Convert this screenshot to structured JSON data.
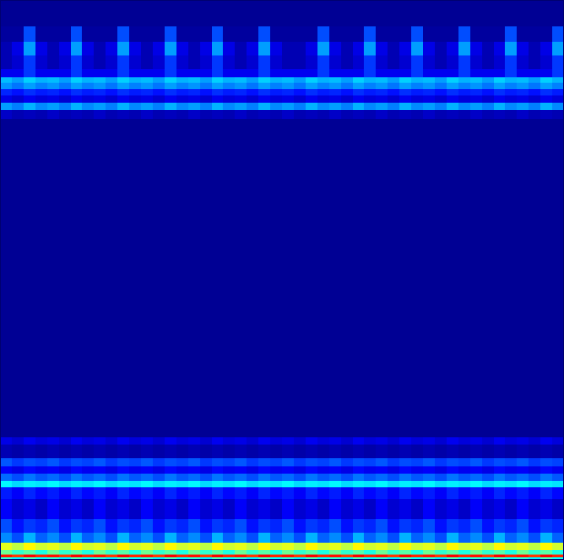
{
  "chart_data": {
    "type": "heatmap",
    "xlim": [
      0,
      48
    ],
    "ylim": [
      0,
      616
    ],
    "y_bins": [
      0,
      4,
      7,
      12,
      20,
      31,
      46,
      68,
      81,
      88,
      96,
      104,
      113,
      128,
      136,
      486,
      496,
      504,
      512,
      519,
      526,
      532,
      541,
      556,
      571,
      588,
      616
    ],
    "color_range": [
      0,
      1
    ],
    "tick_labels": false,
    "grid": false,
    "cells": [
      [
        0.42,
        0.36,
        0.45,
        0.38,
        0.42,
        0.36,
        0.45,
        0.38,
        0.42,
        0.36,
        0.45,
        0.38,
        0.42,
        0.36,
        0.45,
        0.38,
        0.42,
        0.36,
        0.45,
        0.38,
        0.42,
        0.36,
        0.45,
        0.38,
        0.42,
        0.36,
        0.45,
        0.38,
        0.42,
        0.36,
        0.45,
        0.38,
        0.42,
        0.36,
        0.45,
        0.38,
        0.42,
        0.36,
        0.45,
        0.38,
        0.42,
        0.36,
        0.45,
        0.38,
        0.42,
        0.36,
        0.45,
        0.38
      ],
      [
        0.86,
        0.82,
        0.88,
        0.84,
        0.86,
        0.82,
        0.88,
        0.84,
        0.86,
        0.82,
        0.88,
        0.84,
        0.86,
        0.82,
        0.88,
        0.84,
        0.86,
        0.82,
        0.88,
        0.84,
        0.86,
        0.82,
        0.88,
        0.84,
        0.86,
        0.82,
        0.88,
        0.84,
        0.86,
        0.82,
        0.88,
        0.84,
        0.86,
        0.82,
        0.88,
        0.84,
        0.86,
        0.82,
        0.88,
        0.84,
        0.86,
        0.82,
        0.88,
        0.84,
        0.86,
        0.82,
        0.88,
        0.84
      ],
      [
        0.48,
        0.42,
        0.46,
        0.4,
        0.48,
        0.42,
        0.46,
        0.4,
        0.48,
        0.42,
        0.46,
        0.4,
        0.48,
        0.42,
        0.46,
        0.4,
        0.48,
        0.42,
        0.46,
        0.4,
        0.48,
        0.42,
        0.46,
        0.4,
        0.48,
        0.42,
        0.46,
        0.4,
        0.48,
        0.42,
        0.46,
        0.4,
        0.48,
        0.42,
        0.46,
        0.4,
        0.48,
        0.42,
        0.46,
        0.4,
        0.48,
        0.42,
        0.46,
        0.4,
        0.48,
        0.42,
        0.46,
        0.4
      ],
      [
        0.6,
        0.56,
        0.63,
        0.58,
        0.6,
        0.56,
        0.63,
        0.58,
        0.6,
        0.56,
        0.63,
        0.58,
        0.6,
        0.56,
        0.63,
        0.58,
        0.6,
        0.56,
        0.63,
        0.58,
        0.6,
        0.56,
        0.63,
        0.58,
        0.6,
        0.56,
        0.63,
        0.58,
        0.6,
        0.56,
        0.63,
        0.58,
        0.6,
        0.56,
        0.63,
        0.58,
        0.6,
        0.56,
        0.63,
        0.58,
        0.6,
        0.56,
        0.63,
        0.58,
        0.6,
        0.56,
        0.63,
        0.58
      ],
      [
        0.26,
        0.2,
        0.3,
        0.22,
        0.26,
        0.2,
        0.3,
        0.22,
        0.26,
        0.2,
        0.3,
        0.22,
        0.26,
        0.2,
        0.3,
        0.22,
        0.26,
        0.2,
        0.3,
        0.22,
        0.26,
        0.2,
        0.3,
        0.22,
        0.26,
        0.2,
        0.3,
        0.22,
        0.26,
        0.2,
        0.3,
        0.22,
        0.26,
        0.2,
        0.3,
        0.22,
        0.26,
        0.2,
        0.3,
        0.22,
        0.26,
        0.2,
        0.3,
        0.22,
        0.26,
        0.2,
        0.3,
        0.22
      ],
      [
        0.2,
        0.14,
        0.18,
        0.16,
        0.2,
        0.14,
        0.18,
        0.16,
        0.2,
        0.14,
        0.18,
        0.16,
        0.2,
        0.14,
        0.18,
        0.16,
        0.2,
        0.14,
        0.18,
        0.16,
        0.2,
        0.14,
        0.18,
        0.16,
        0.2,
        0.14,
        0.18,
        0.16,
        0.2,
        0.14,
        0.18,
        0.16,
        0.2,
        0.14,
        0.18,
        0.16,
        0.2,
        0.14,
        0.18,
        0.16,
        0.2,
        0.14,
        0.18,
        0.16,
        0.2,
        0.14,
        0.18,
        0.16
      ],
      [
        0.12,
        0.08,
        0.1,
        0.07,
        0.12,
        0.08,
        0.1,
        0.07,
        0.12,
        0.08,
        0.1,
        0.07,
        0.12,
        0.08,
        0.1,
        0.07,
        0.12,
        0.08,
        0.1,
        0.07,
        0.12,
        0.08,
        0.1,
        0.07,
        0.12,
        0.08,
        0.1,
        0.07,
        0.12,
        0.08,
        0.1,
        0.07,
        0.12,
        0.08,
        0.1,
        0.07,
        0.12,
        0.08,
        0.1,
        0.07,
        0.12,
        0.08,
        0.1,
        0.07,
        0.12,
        0.08,
        0.1,
        0.07
      ],
      [
        0.15,
        0.12,
        0.16,
        0.13,
        0.15,
        0.12,
        0.16,
        0.13,
        0.15,
        0.12,
        0.16,
        0.13,
        0.15,
        0.12,
        0.16,
        0.13,
        0.15,
        0.12,
        0.16,
        0.13,
        0.15,
        0.12,
        0.16,
        0.13,
        0.15,
        0.12,
        0.16,
        0.13,
        0.15,
        0.12,
        0.16,
        0.13,
        0.15,
        0.12,
        0.16,
        0.13,
        0.15,
        0.12,
        0.16,
        0.13,
        0.15,
        0.12,
        0.16,
        0.13,
        0.15,
        0.12,
        0.16,
        0.13
      ],
      [
        0.37,
        0.34,
        0.36,
        0.35,
        0.37,
        0.34,
        0.36,
        0.35,
        0.37,
        0.34,
        0.36,
        0.35,
        0.37,
        0.34,
        0.36,
        0.35,
        0.37,
        0.34,
        0.36,
        0.35,
        0.37,
        0.34,
        0.36,
        0.35,
        0.37,
        0.34,
        0.36,
        0.35,
        0.37,
        0.34,
        0.36,
        0.35,
        0.37,
        0.34,
        0.36,
        0.35,
        0.37,
        0.34,
        0.36,
        0.35,
        0.37,
        0.34,
        0.36,
        0.35,
        0.37,
        0.34,
        0.36,
        0.35
      ],
      [
        0.23,
        0.2,
        0.24,
        0.21,
        0.23,
        0.2,
        0.24,
        0.21,
        0.23,
        0.2,
        0.24,
        0.21,
        0.23,
        0.2,
        0.24,
        0.21,
        0.23,
        0.2,
        0.24,
        0.21,
        0.23,
        0.2,
        0.24,
        0.21,
        0.23,
        0.2,
        0.24,
        0.21,
        0.23,
        0.2,
        0.24,
        0.21,
        0.23,
        0.2,
        0.24,
        0.21,
        0.23,
        0.2,
        0.24,
        0.21,
        0.23,
        0.2,
        0.24,
        0.21,
        0.23,
        0.2,
        0.24,
        0.21
      ],
      [
        0.12,
        0.1,
        0.13,
        0.11,
        0.12,
        0.1,
        0.13,
        0.11,
        0.12,
        0.1,
        0.13,
        0.11,
        0.12,
        0.1,
        0.13,
        0.11,
        0.12,
        0.1,
        0.13,
        0.11,
        0.12,
        0.1,
        0.13,
        0.11,
        0.12,
        0.1,
        0.13,
        0.11,
        0.12,
        0.1,
        0.13,
        0.11,
        0.12,
        0.1,
        0.13,
        0.11,
        0.12,
        0.1,
        0.13,
        0.11,
        0.12,
        0.1,
        0.13,
        0.11,
        0.12,
        0.1,
        0.13,
        0.11
      ],
      [
        0.21,
        0.18,
        0.2,
        0.19,
        0.21,
        0.18,
        0.2,
        0.19,
        0.21,
        0.18,
        0.2,
        0.19,
        0.21,
        0.18,
        0.2,
        0.19,
        0.21,
        0.18,
        0.2,
        0.19,
        0.21,
        0.18,
        0.2,
        0.19,
        0.21,
        0.18,
        0.2,
        0.19,
        0.21,
        0.18,
        0.2,
        0.19,
        0.21,
        0.18,
        0.2,
        0.19,
        0.21,
        0.18,
        0.2,
        0.19,
        0.21,
        0.18,
        0.2,
        0.19,
        0.21,
        0.18,
        0.2,
        0.19
      ],
      [
        0.05,
        0.04,
        0.05,
        0.04,
        0.05,
        0.04,
        0.05,
        0.04,
        0.05,
        0.04,
        0.05,
        0.04,
        0.05,
        0.04,
        0.05,
        0.04,
        0.05,
        0.04,
        0.05,
        0.04,
        0.05,
        0.04,
        0.05,
        0.04,
        0.05,
        0.04,
        0.05,
        0.04,
        0.05,
        0.04,
        0.05,
        0.04,
        0.05,
        0.04,
        0.05,
        0.04,
        0.05,
        0.04,
        0.05,
        0.04,
        0.05,
        0.04,
        0.05,
        0.04,
        0.05,
        0.04,
        0.05,
        0.04
      ],
      [
        0.1,
        0.08,
        0.11,
        0.09,
        0.1,
        0.08,
        0.11,
        0.09,
        0.1,
        0.08,
        0.11,
        0.09,
        0.1,
        0.08,
        0.11,
        0.09,
        0.1,
        0.08,
        0.11,
        0.09,
        0.1,
        0.08,
        0.11,
        0.09,
        0.1,
        0.08,
        0.11,
        0.09,
        0.1,
        0.08,
        0.11,
        0.09,
        0.1,
        0.08,
        0.11,
        0.09,
        0.1,
        0.08,
        0.11,
        0.09,
        0.1,
        0.08,
        0.11,
        0.09,
        0.1,
        0.08,
        0.11,
        0.09
      ],
      [
        0.02,
        0.02,
        0.02,
        0.02,
        0.02,
        0.02,
        0.02,
        0.02,
        0.02,
        0.02,
        0.02,
        0.02,
        0.02,
        0.02,
        0.02,
        0.02,
        0.02,
        0.02,
        0.02,
        0.02,
        0.02,
        0.02,
        0.02,
        0.02,
        0.02,
        0.02,
        0.02,
        0.02,
        0.02,
        0.02,
        0.02,
        0.02,
        0.02,
        0.02,
        0.02,
        0.02,
        0.02,
        0.02,
        0.02,
        0.02,
        0.02,
        0.02,
        0.02,
        0.02,
        0.02,
        0.02,
        0.02,
        0.02
      ],
      [
        0.07,
        0.05,
        0.06,
        0.05,
        0.07,
        0.05,
        0.06,
        0.05,
        0.07,
        0.05,
        0.06,
        0.05,
        0.07,
        0.05,
        0.06,
        0.05,
        0.07,
        0.05,
        0.06,
        0.05,
        0.07,
        0.05,
        0.06,
        0.05,
        0.07,
        0.05,
        0.06,
        0.05,
        0.07,
        0.05,
        0.06,
        0.05,
        0.07,
        0.05,
        0.06,
        0.05,
        0.07,
        0.05,
        0.06,
        0.05,
        0.07,
        0.05,
        0.06,
        0.05,
        0.07,
        0.05,
        0.06,
        0.05
      ],
      [
        0.28,
        0.25,
        0.3,
        0.26,
        0.28,
        0.25,
        0.3,
        0.26,
        0.28,
        0.25,
        0.3,
        0.26,
        0.28,
        0.25,
        0.3,
        0.26,
        0.28,
        0.25,
        0.3,
        0.26,
        0.28,
        0.25,
        0.3,
        0.26,
        0.28,
        0.25,
        0.3,
        0.26,
        0.28,
        0.25,
        0.3,
        0.26,
        0.28,
        0.25,
        0.3,
        0.26,
        0.28,
        0.25,
        0.3,
        0.26,
        0.28,
        0.25,
        0.3,
        0.26,
        0.28,
        0.25,
        0.3,
        0.26
      ],
      [
        0.1,
        0.08,
        0.11,
        0.09,
        0.1,
        0.08,
        0.11,
        0.09,
        0.1,
        0.08,
        0.11,
        0.09,
        0.1,
        0.08,
        0.11,
        0.09,
        0.1,
        0.08,
        0.11,
        0.09,
        0.1,
        0.08,
        0.11,
        0.09,
        0.1,
        0.08,
        0.11,
        0.09,
        0.1,
        0.08,
        0.11,
        0.09,
        0.1,
        0.08,
        0.11,
        0.09,
        0.1,
        0.08,
        0.11,
        0.09,
        0.1,
        0.08,
        0.11,
        0.09,
        0.1,
        0.08,
        0.11,
        0.09
      ],
      [
        0.16,
        0.14,
        0.17,
        0.15,
        0.16,
        0.14,
        0.17,
        0.15,
        0.16,
        0.14,
        0.17,
        0.15,
        0.16,
        0.14,
        0.17,
        0.15,
        0.16,
        0.14,
        0.17,
        0.15,
        0.16,
        0.14,
        0.17,
        0.15,
        0.16,
        0.14,
        0.17,
        0.15,
        0.16,
        0.14,
        0.17,
        0.15,
        0.16,
        0.14,
        0.17,
        0.15,
        0.16,
        0.14,
        0.17,
        0.15,
        0.16,
        0.14,
        0.17,
        0.15,
        0.16,
        0.14,
        0.17,
        0.15
      ],
      [
        0.27,
        0.24,
        0.28,
        0.25,
        0.27,
        0.24,
        0.28,
        0.25,
        0.27,
        0.24,
        0.28,
        0.25,
        0.27,
        0.24,
        0.28,
        0.25,
        0.27,
        0.24,
        0.28,
        0.25,
        0.27,
        0.24,
        0.28,
        0.25,
        0.27,
        0.24,
        0.28,
        0.25,
        0.27,
        0.24,
        0.28,
        0.25,
        0.27,
        0.24,
        0.28,
        0.25,
        0.27,
        0.24,
        0.28,
        0.25,
        0.27,
        0.24,
        0.28,
        0.25,
        0.27,
        0.24,
        0.28,
        0.25
      ],
      [
        0.31,
        0.28,
        0.33,
        0.3,
        0.31,
        0.28,
        0.33,
        0.3,
        0.31,
        0.28,
        0.33,
        0.3,
        0.31,
        0.28,
        0.33,
        0.3,
        0.31,
        0.28,
        0.33,
        0.3,
        0.31,
        0.28,
        0.33,
        0.3,
        0.31,
        0.28,
        0.33,
        0.3,
        0.31,
        0.28,
        0.33,
        0.3,
        0.31,
        0.28,
        0.33,
        0.3,
        0.31,
        0.28,
        0.33,
        0.3,
        0.31,
        0.28,
        0.33,
        0.3,
        0.31,
        0.28,
        0.33,
        0.3
      ],
      [
        0.11,
        0.11,
        0.18,
        0.11,
        0.11,
        0.11,
        0.18,
        0.11,
        0.11,
        0.11,
        0.18,
        0.11,
        0.11,
        0.11,
        0.18,
        0.11,
        0.11,
        0.11,
        0.18,
        0.11,
        0.11,
        0.11,
        0.18,
        0.11,
        0.11,
        0.11,
        0.11,
        0.18,
        0.11,
        0.11,
        0.11,
        0.18,
        0.11,
        0.11,
        0.11,
        0.18,
        0.11,
        0.11,
        0.11,
        0.18,
        0.11,
        0.11,
        0.11,
        0.18,
        0.11,
        0.11,
        0.11,
        0.18
      ],
      [
        0.05,
        0.08,
        0.18,
        0.08,
        0.05,
        0.08,
        0.18,
        0.08,
        0.05,
        0.08,
        0.18,
        0.08,
        0.05,
        0.08,
        0.18,
        0.08,
        0.05,
        0.08,
        0.18,
        0.08,
        0.05,
        0.08,
        0.18,
        0.08,
        0.05,
        0.05,
        0.08,
        0.18,
        0.08,
        0.05,
        0.08,
        0.18,
        0.08,
        0.05,
        0.08,
        0.18,
        0.08,
        0.05,
        0.08,
        0.18,
        0.08,
        0.05,
        0.08,
        0.18,
        0.08,
        0.05,
        0.08,
        0.18
      ],
      [
        0.05,
        0.1,
        0.28,
        0.1,
        0.05,
        0.1,
        0.28,
        0.1,
        0.05,
        0.1,
        0.28,
        0.1,
        0.05,
        0.1,
        0.28,
        0.1,
        0.05,
        0.1,
        0.28,
        0.1,
        0.05,
        0.1,
        0.28,
        0.1,
        0.05,
        0.05,
        0.1,
        0.28,
        0.1,
        0.05,
        0.1,
        0.28,
        0.1,
        0.05,
        0.1,
        0.28,
        0.1,
        0.05,
        0.1,
        0.28,
        0.1,
        0.05,
        0.1,
        0.28,
        0.1,
        0.05,
        0.1,
        0.28
      ],
      [
        0.03,
        0.03,
        0.2,
        0.03,
        0.03,
        0.03,
        0.2,
        0.03,
        0.03,
        0.03,
        0.2,
        0.03,
        0.03,
        0.03,
        0.2,
        0.03,
        0.03,
        0.03,
        0.2,
        0.03,
        0.03,
        0.03,
        0.2,
        0.03,
        0.03,
        0.03,
        0.03,
        0.2,
        0.03,
        0.03,
        0.03,
        0.2,
        0.03,
        0.03,
        0.03,
        0.2,
        0.03,
        0.03,
        0.03,
        0.2,
        0.03,
        0.03,
        0.03,
        0.2,
        0.03,
        0.03,
        0.03,
        0.2
      ],
      [
        0.02,
        0.02,
        0.02,
        0.02,
        0.02,
        0.02,
        0.02,
        0.02,
        0.02,
        0.02,
        0.02,
        0.02,
        0.02,
        0.02,
        0.02,
        0.02,
        0.02,
        0.02,
        0.02,
        0.02,
        0.02,
        0.02,
        0.02,
        0.02,
        0.02,
        0.02,
        0.02,
        0.02,
        0.02,
        0.02,
        0.02,
        0.02,
        0.02,
        0.02,
        0.02,
        0.02,
        0.02,
        0.02,
        0.02,
        0.02,
        0.02,
        0.02,
        0.02,
        0.02,
        0.02,
        0.02,
        0.02,
        0.02
      ]
    ]
  }
}
